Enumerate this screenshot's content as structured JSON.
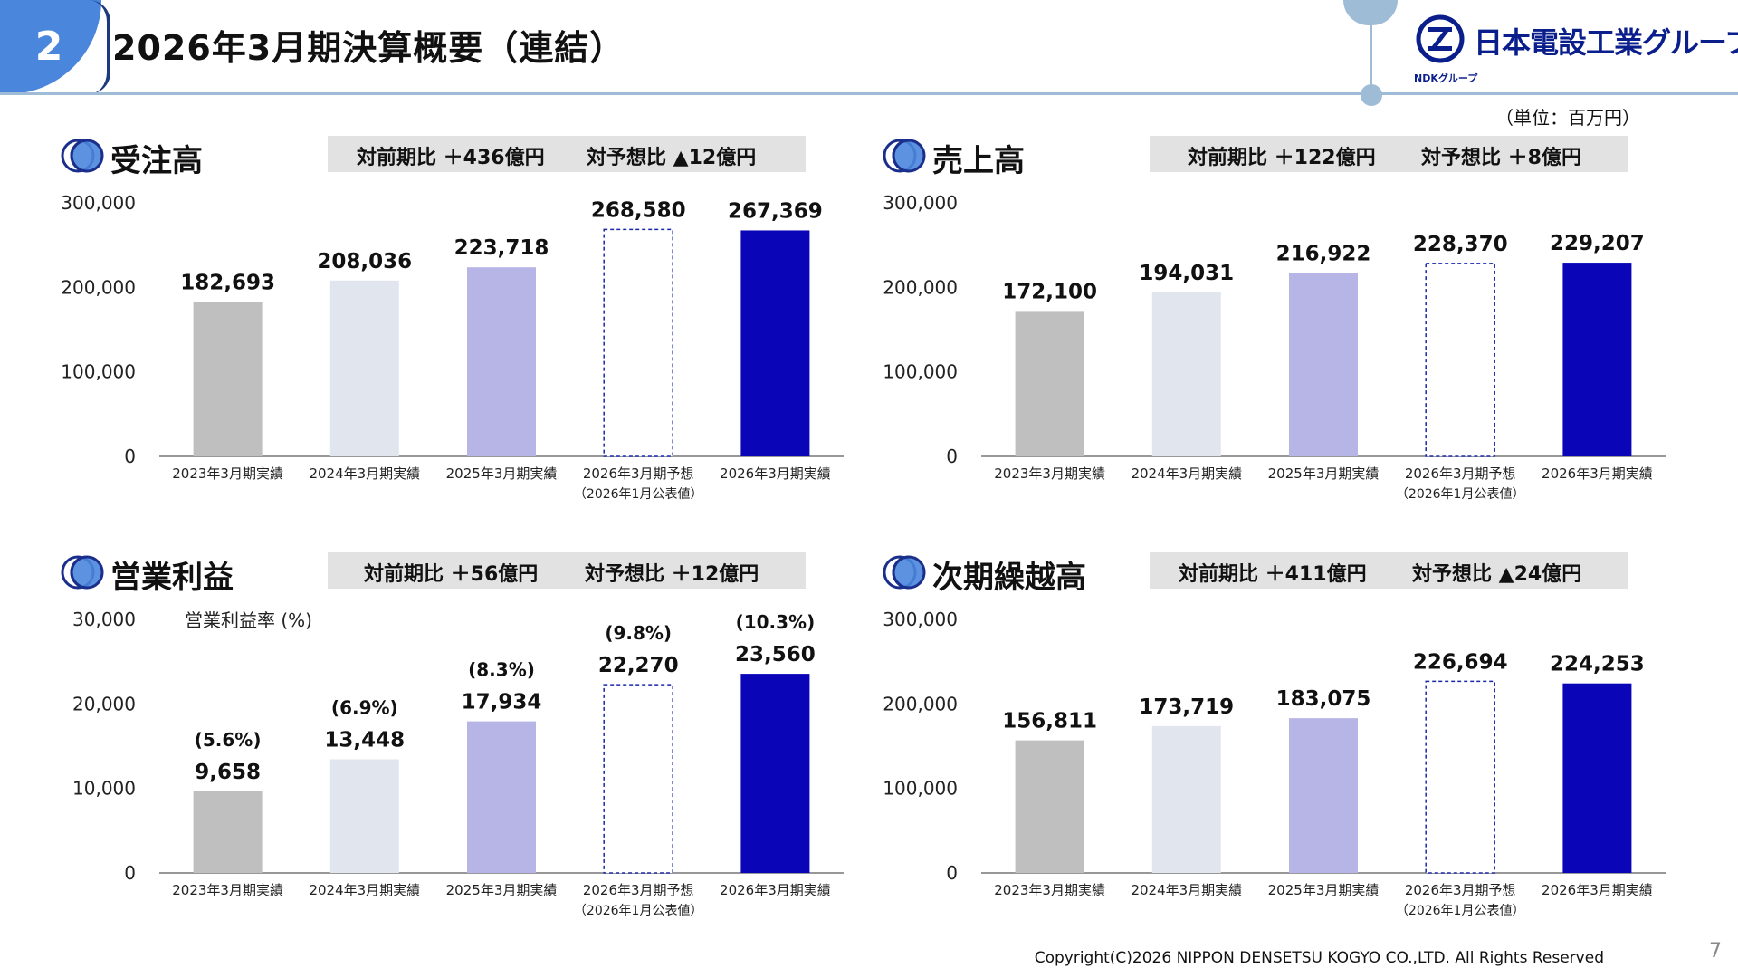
{
  "header": {
    "number": "2",
    "title": "2026年3月期決算概要（連結）",
    "logo_text": "日本電設工業グループ",
    "logo_sub": "NDKグループ"
  },
  "unit_label": "（単位：百万円）",
  "footer": {
    "copyright": "Copyright(C)2026 NIPPON DENSETSU KOGYO CO.,LTD. All Rights Reserved",
    "page_number": "7"
  },
  "colors": {
    "fy2023": "#bfbfbf",
    "fy2024": "#e1e5ee",
    "fy2025": "#b6b5e6",
    "forecast_border": "#1a28a8",
    "fy2026": "#0a06b8",
    "header_accent": "#4a86dc",
    "logo": "#0a1e8c"
  },
  "chart_data": [
    {
      "type": "bar",
      "title": "受注高",
      "comparison": {
        "yoy": "対前期比 ＋436億円",
        "vs_forecast": "対予想比 ▲12億円"
      },
      "categories": [
        "2023年3月期実績",
        "2024年3月期実績",
        "2025年3月期実績",
        "2026年3月期予想",
        "2026年3月期実績"
      ],
      "category_notes": [
        "",
        "",
        "",
        "（2026年1月公表値）",
        ""
      ],
      "values": [
        182693,
        208036,
        223718,
        268580,
        267369
      ],
      "value_labels": [
        "182,693",
        "208,036",
        "223,718",
        "268,580",
        "267,369"
      ],
      "forecast_index": 3,
      "yticks": [
        "0",
        "100,000",
        "200,000",
        "300,000"
      ],
      "ylim": [
        0,
        300000
      ]
    },
    {
      "type": "bar",
      "title": "売上高",
      "comparison": {
        "yoy": "対前期比 ＋122億円",
        "vs_forecast": "対予想比 ＋8億円"
      },
      "categories": [
        "2023年3月期実績",
        "2024年3月期実績",
        "2025年3月期実績",
        "2026年3月期予想",
        "2026年3月期実績"
      ],
      "category_notes": [
        "",
        "",
        "",
        "（2026年1月公表値）",
        ""
      ],
      "values": [
        172100,
        194031,
        216922,
        228370,
        229207
      ],
      "value_labels": [
        "172,100",
        "194,031",
        "216,922",
        "228,370",
        "229,207"
      ],
      "forecast_index": 3,
      "yticks": [
        "0",
        "100,000",
        "200,000",
        "300,000"
      ],
      "ylim": [
        0,
        300000
      ]
    },
    {
      "type": "bar",
      "title": "営業利益",
      "comparison": {
        "yoy": "対前期比 ＋56億円",
        "vs_forecast": "対予想比 ＋12億円"
      },
      "categories": [
        "2023年3月期実績",
        "2024年3月期実績",
        "2025年3月期実績",
        "2026年3月期予想",
        "2026年3月期実績"
      ],
      "category_notes": [
        "",
        "",
        "",
        "（2026年1月公表値）",
        ""
      ],
      "values": [
        9658,
        13448,
        17934,
        22270,
        23560
      ],
      "value_labels": [
        "9,658",
        "13,448",
        "17,934",
        "22,270",
        "23,560"
      ],
      "margin_label": "営業利益率 (%)",
      "margins": [
        "(5.6%)",
        "(6.9%)",
        "(8.3%)",
        "(9.8%)",
        "(10.3%)"
      ],
      "forecast_index": 3,
      "yticks": [
        "0",
        "10,000",
        "20,000",
        "30,000"
      ],
      "ylim": [
        0,
        30000
      ]
    },
    {
      "type": "bar",
      "title": "次期繰越高",
      "comparison": {
        "yoy": "対前期比 ＋411億円",
        "vs_forecast": "対予想比 ▲24億円"
      },
      "categories": [
        "2023年3月期実績",
        "2024年3月期実績",
        "2025年3月期実績",
        "2026年3月期予想",
        "2026年3月期実績"
      ],
      "category_notes": [
        "",
        "",
        "",
        "（2026年1月公表値）",
        ""
      ],
      "values": [
        156811,
        173719,
        183075,
        226694,
        224253
      ],
      "value_labels": [
        "156,811",
        "173,719",
        "183,075",
        "226,694",
        "224,253"
      ],
      "forecast_index": 3,
      "yticks": [
        "0",
        "100,000",
        "200,000",
        "300,000"
      ],
      "ylim": [
        0,
        300000
      ]
    }
  ]
}
